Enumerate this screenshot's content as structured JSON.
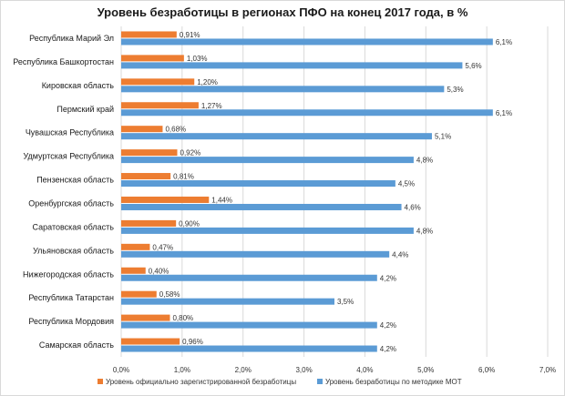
{
  "chart_data": {
    "type": "bar",
    "orientation": "horizontal",
    "title": "Уровень безработицы  в регионах ПФО на конец 2017 года, в %",
    "categories": [
      "Республика Марий  Эл",
      "Республика Башкортостан",
      "Кировская область",
      "Пермский край",
      "Чувашская Республика",
      "Удмуртская Республика",
      "Пензенская область",
      "Оренбургская область",
      "Саратовская область",
      "Ульяновская область",
      "Нижегородская  область",
      "Республика Татарстан",
      "Республика Мордовия",
      "Самарская область"
    ],
    "series": [
      {
        "name": "Уровень официально зарегистрированной безработицы",
        "color": "#ed7d31",
        "values": [
          0.91,
          1.03,
          1.2,
          1.27,
          0.68,
          0.92,
          0.81,
          1.44,
          0.9,
          0.47,
          0.4,
          0.58,
          0.8,
          0.96
        ],
        "labels": [
          "0,91%",
          "1,03%",
          "1,20%",
          "1,27%",
          "0,68%",
          "0,92%",
          "0,81%",
          "1,44%",
          "0,90%",
          "0,47%",
          "0,40%",
          "0,58%",
          "0,80%",
          "0,96%"
        ]
      },
      {
        "name": "Уровень безработицы по методике МОТ",
        "color": "#5b9bd5",
        "values": [
          6.1,
          5.6,
          5.3,
          6.1,
          5.1,
          4.8,
          4.5,
          4.6,
          4.8,
          4.4,
          4.2,
          3.5,
          4.2,
          4.2
        ],
        "labels": [
          "6,1%",
          "5,6%",
          "5,3%",
          "6,1%",
          "5,1%",
          "4,8%",
          "4,5%",
          "4,6%",
          "4,8%",
          "4,4%",
          "4,2%",
          "3,5%",
          "4,2%",
          "4,2%"
        ]
      }
    ],
    "xlim": [
      0,
      7
    ],
    "xticks": [
      0,
      1,
      2,
      3,
      4,
      5,
      6,
      7
    ],
    "xtick_labels": [
      "0,0%",
      "1,0%",
      "2,0%",
      "3,0%",
      "4,0%",
      "5,0%",
      "6,0%",
      "7,0%"
    ],
    "grid": "vertical",
    "legend_position": "bottom",
    "colors": {
      "gridline": "#d9d9d9",
      "text": "#333333"
    }
  }
}
